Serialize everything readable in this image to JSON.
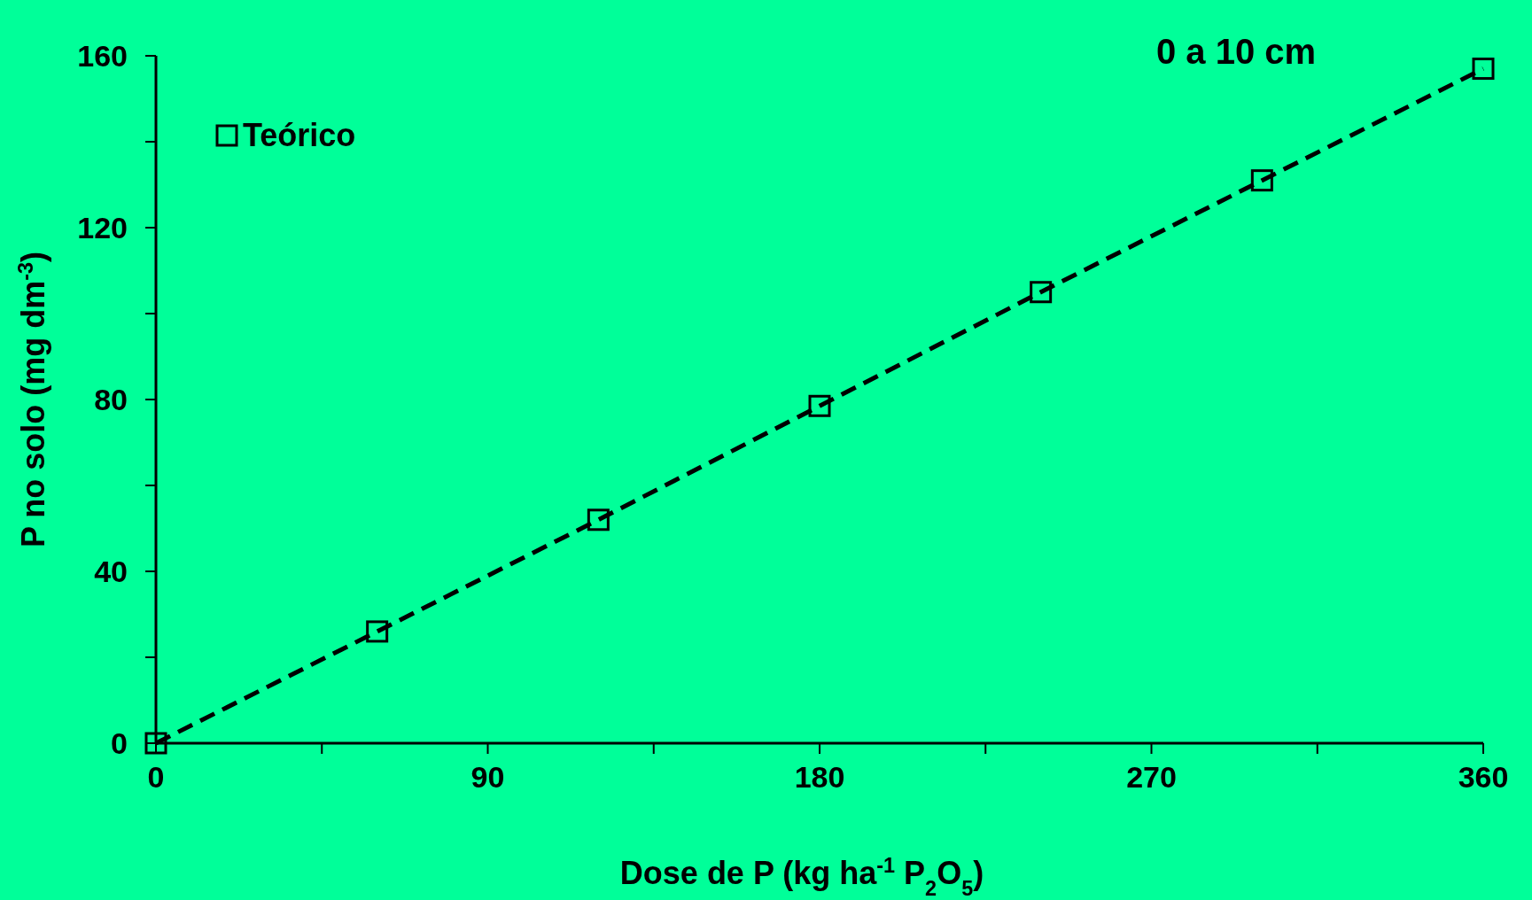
{
  "chart_data": {
    "type": "line",
    "title": "0 a 10 cm",
    "xlabel": "Dose de P (kg ha$^{-1}$ P$_{2}$O$_{5}$)",
    "ylabel": "P no solo (mg dm$^{-3}$)",
    "x": [
      0,
      60,
      120,
      180,
      240,
      300,
      360
    ],
    "series": [
      {
        "name": "Teórico",
        "color": "#000000",
        "values": [
          0,
          26,
          52,
          78.5,
          105,
          131,
          157
        ]
      }
    ],
    "xlim": [
      0,
      360
    ],
    "xticks": [
      0,
      {
        "value": 45,
        "label": null
      },
      90,
      {
        "value": 135,
        "label": null
      },
      180,
      {
        "value": 225,
        "label": null
      },
      270,
      {
        "value": 315,
        "label": null
      },
      360
    ],
    "ylim": [
      0,
      160
    ],
    "yticks": [
      0,
      {
        "value": 20,
        "label": null
      },
      40,
      {
        "value": 60,
        "label": null
      },
      80,
      {
        "value": 100,
        "label": null
      },
      120,
      {
        "value": 140,
        "label": null
      },
      160
    ],
    "marker": "square",
    "line_style": "dashed",
    "legend": "top left",
    "grid": false
  }
}
